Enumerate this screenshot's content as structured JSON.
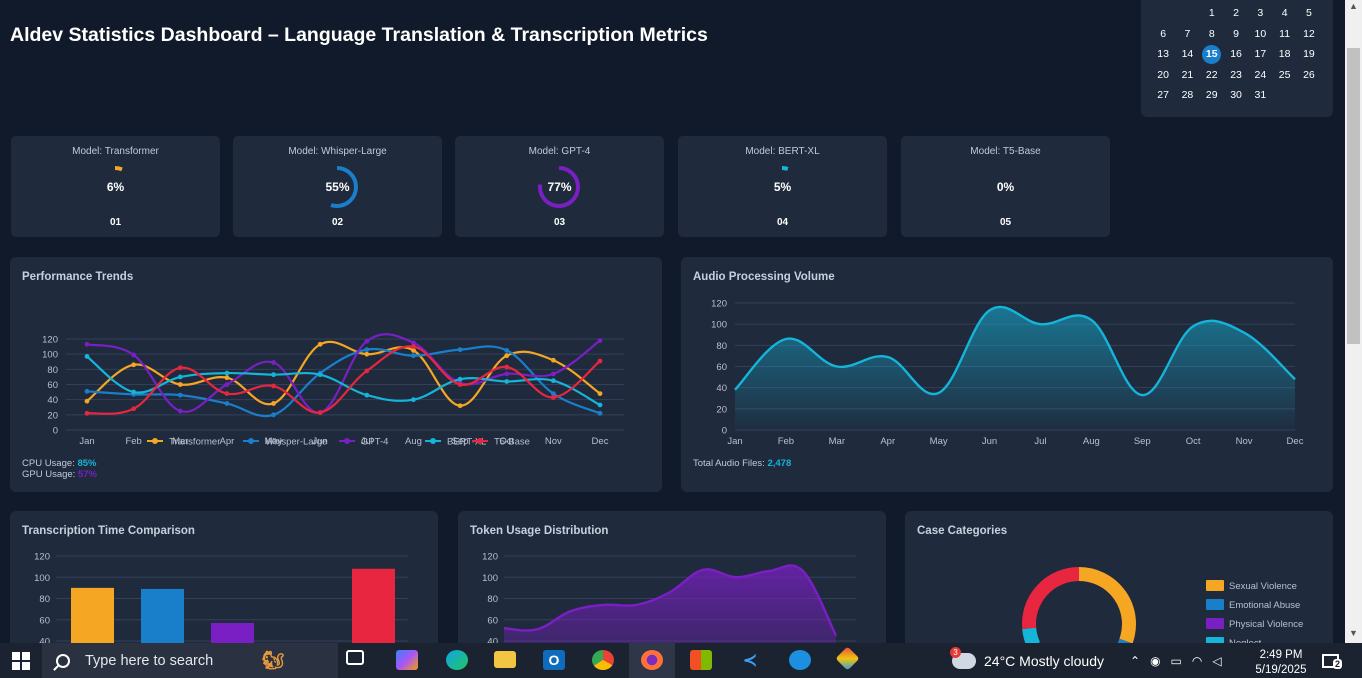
{
  "header": {
    "title": "Aldev Statistics Dashboard – Language Translation & Transcription Metrics"
  },
  "calendar": {
    "today": "15",
    "rows": [
      [
        "",
        "",
        "",
        "1",
        "2",
        "3",
        "4",
        "5"
      ],
      [
        "6",
        "7",
        "8",
        "9",
        "10",
        "11",
        "12"
      ],
      [
        "13",
        "14",
        "15",
        "16",
        "17",
        "18",
        "19"
      ],
      [
        "20",
        "21",
        "22",
        "23",
        "24",
        "25",
        "26"
      ],
      [
        "27",
        "28",
        "29",
        "30",
        "31"
      ]
    ]
  },
  "models": [
    {
      "label": "Model: Transformer",
      "value": "6%",
      "index": "01",
      "percent": 6,
      "color": "#f5a623"
    },
    {
      "label": "Model: Whisper-Large",
      "value": "55%",
      "index": "02",
      "percent": 55,
      "color": "#1a7fcb"
    },
    {
      "label": "Model: GPT-4",
      "value": "77%",
      "index": "03",
      "percent": 77,
      "color": "#7a1fc4"
    },
    {
      "label": "Model: BERT-XL",
      "value": "5%",
      "index": "04",
      "percent": 5,
      "color": "#15b4d9"
    },
    {
      "label": "Model: T5-Base",
      "value": "0%",
      "index": "05",
      "percent": 0,
      "color": "#e8263f"
    }
  ],
  "performance": {
    "title": "Performance Trends",
    "cpu_label": "CPU Usage: ",
    "cpu_value": "85%",
    "gpu_label": "GPU Usage: ",
    "gpu_value": "57%"
  },
  "audio": {
    "title": "Audio Processing Volume",
    "total_label": "Total Audio Files: ",
    "total_value": "2,478"
  },
  "transcription": {
    "title": "Transcription Time Comparison"
  },
  "tokens": {
    "title": "Token Usage Distribution"
  },
  "cases": {
    "title": "Case Categories",
    "legend": [
      "Sexual Violence",
      "Emotional Abuse",
      "Physical Violence",
      "Neglect"
    ]
  },
  "chart_data": [
    {
      "type": "line",
      "categories": [
        "Jan",
        "Feb",
        "Mar",
        "Apr",
        "May",
        "Jun",
        "Jul",
        "Aug",
        "Sep",
        "Oct",
        "Nov",
        "Dec"
      ],
      "ylim": [
        0,
        120
      ],
      "yticks": [
        0,
        20,
        40,
        60,
        80,
        100,
        120
      ],
      "series": [
        {
          "name": "Transformer",
          "color": "#f5a623",
          "values": [
            38,
            86,
            60,
            69,
            35,
            113,
            100,
            105,
            32,
            98,
            92,
            48
          ]
        },
        {
          "name": "Whisper-Large",
          "color": "#1a7fcb",
          "values": [
            51,
            47,
            46,
            35,
            20,
            75,
            106,
            98,
            106,
            105,
            48,
            22
          ]
        },
        {
          "name": "GPT-4",
          "color": "#7a1fc4",
          "values": [
            113,
            99,
            25,
            60,
            89,
            23,
            117,
            115,
            62,
            74,
            74,
            118
          ]
        },
        {
          "name": "BERT-XL",
          "color": "#15b4d9",
          "values": [
            97,
            50,
            70,
            75,
            73,
            73,
            46,
            40,
            67,
            64,
            65,
            33
          ]
        },
        {
          "name": "T5-Base",
          "color": "#e8263f",
          "values": [
            22,
            28,
            82,
            48,
            58,
            23,
            78,
            110,
            60,
            83,
            43,
            91
          ]
        }
      ],
      "legend": "bottom"
    },
    {
      "type": "area",
      "categories": [
        "Jan",
        "Feb",
        "Mar",
        "Apr",
        "May",
        "Jun",
        "Jul",
        "Aug",
        "Sep",
        "Oct",
        "Nov",
        "Dec"
      ],
      "ylim": [
        0,
        120
      ],
      "yticks": [
        0,
        20,
        40,
        60,
        80,
        100,
        120
      ],
      "series": [
        {
          "color": "#15b4d9",
          "values": [
            38,
            86,
            60,
            69,
            35,
            113,
            100,
            104,
            33,
            98,
            92,
            48
          ]
        }
      ]
    },
    {
      "type": "bar",
      "ylim": [
        40,
        120
      ],
      "yticks": [
        40,
        60,
        80,
        100,
        120
      ],
      "values": [
        90,
        89,
        57,
        108
      ],
      "colors": [
        "#f5a623",
        "#1a7fcb",
        "#7a1fc4",
        "#e8263f"
      ]
    },
    {
      "type": "area",
      "ylim": [
        40,
        120
      ],
      "yticks": [
        40,
        60,
        80,
        100,
        120
      ],
      "series": [
        {
          "color": "#7a1fc4",
          "values": [
            52,
            51,
            68,
            74,
            74,
            86,
            107,
            100,
            106,
            106,
            45
          ]
        }
      ]
    },
    {
      "type": "pie",
      "labels": [
        "Sexual Violence",
        "Emotional Abuse",
        "Physical Violence",
        "Neglect"
      ],
      "colors": [
        "#f5a623",
        "#1a7fcb",
        "#7a1fc4",
        "#15b4d9"
      ],
      "visible_ring_colors": [
        "#f5a623",
        "#1a7fcb",
        "#15b4d9",
        "#e8263f"
      ]
    }
  ],
  "taskbar": {
    "search_placeholder": "Type here to search",
    "weather": "24°C  Mostly cloudy",
    "weather_badge": "3",
    "time": "2:49 PM",
    "date": "5/19/2025",
    "notification_count": "2"
  }
}
